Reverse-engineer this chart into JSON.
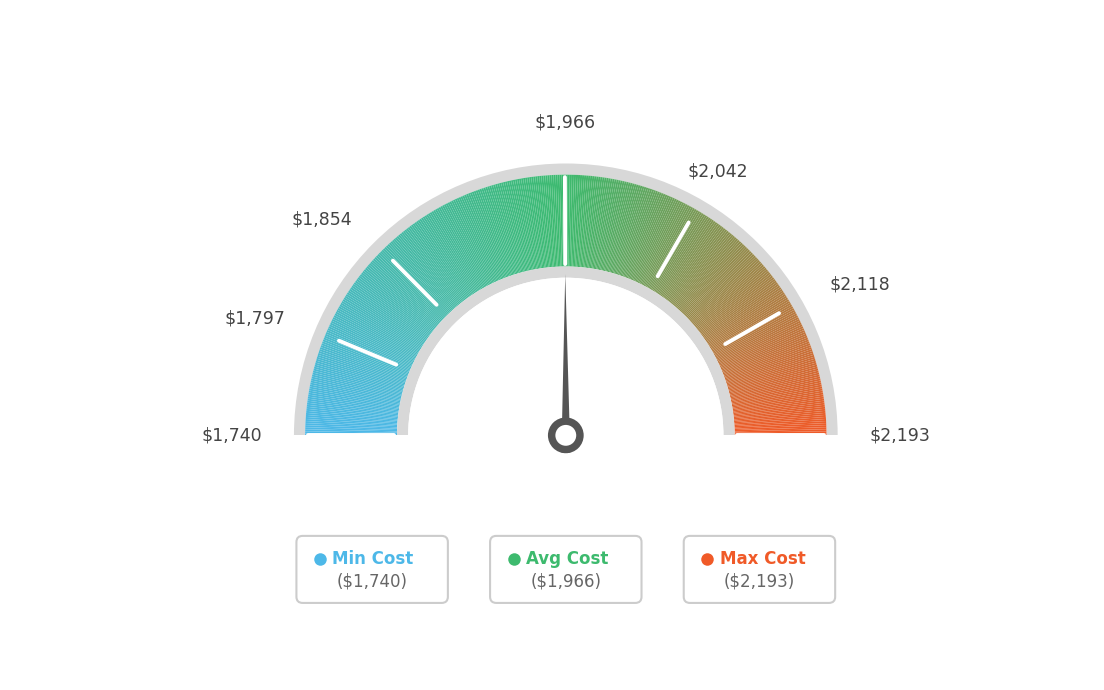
{
  "min_val": 1740,
  "avg_val": 1966,
  "max_val": 2193,
  "tick_labels": [
    "$1,740",
    "$1,797",
    "$1,854",
    "$1,966",
    "$2,042",
    "$2,118",
    "$2,193"
  ],
  "tick_values": [
    1740,
    1797,
    1854,
    1966,
    2042,
    2118,
    2193
  ],
  "legend_min_label": "Min Cost",
  "legend_avg_label": "Avg Cost",
  "legend_max_label": "Max Cost",
  "legend_min_value": "($1,740)",
  "legend_avg_value": "($1,966)",
  "legend_max_value": "($2,193)",
  "min_color": "#4db8e8",
  "avg_color": "#3dba6e",
  "max_color": "#f05a28",
  "background_color": "#ffffff",
  "needle_value": 1966,
  "color_stops": [
    [
      0.0,
      [
        0.302,
        0.722,
        0.91
      ]
    ],
    [
      0.5,
      [
        0.239,
        0.729,
        0.431
      ]
    ],
    [
      1.0,
      [
        0.941,
        0.353,
        0.157
      ]
    ]
  ]
}
